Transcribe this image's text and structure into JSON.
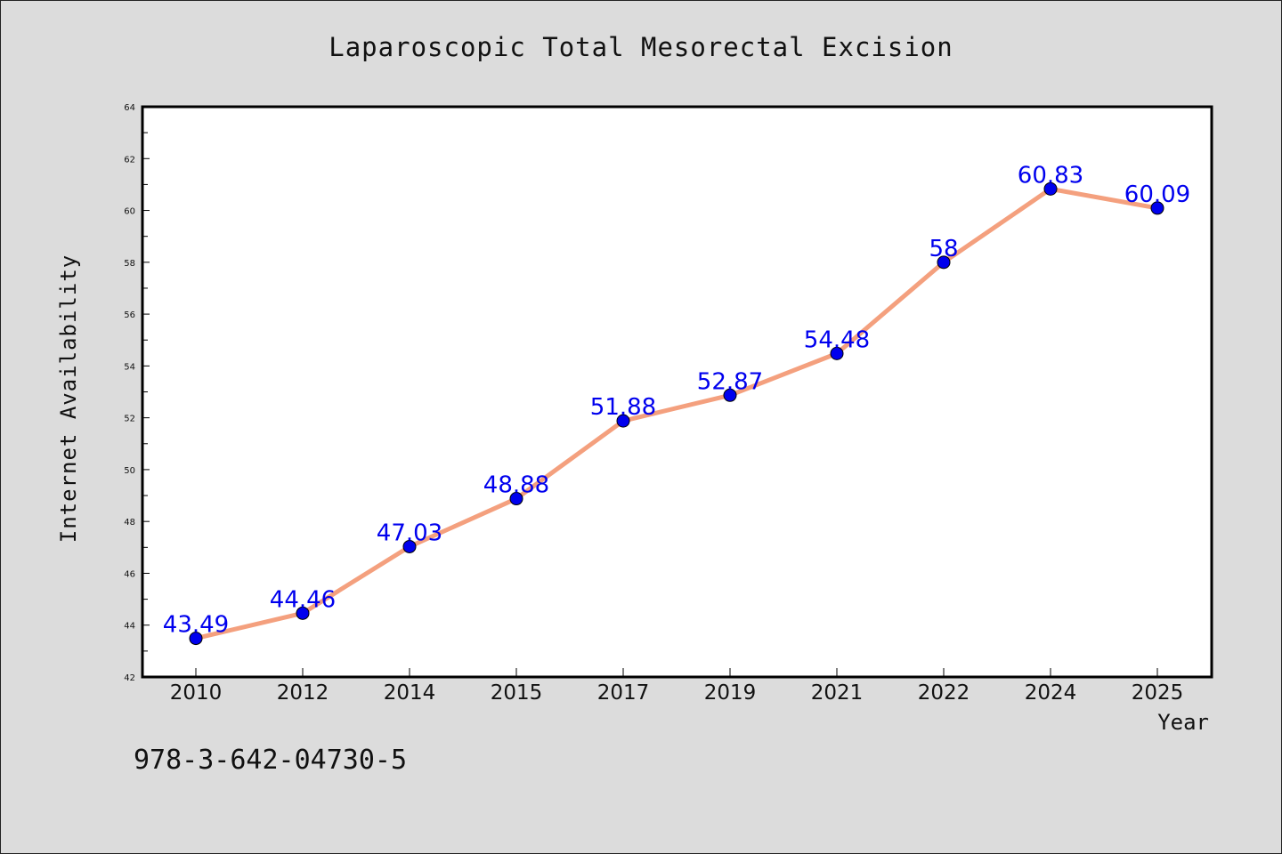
{
  "chart_data": {
    "type": "line",
    "title": "Laparoscopic Total Mesorectal Excision",
    "xlabel": "Year",
    "ylabel": "Internet Availability",
    "categories": [
      "2010",
      "2012",
      "2014",
      "2015",
      "2017",
      "2019",
      "2021",
      "2022",
      "2024",
      "2025"
    ],
    "values": [
      43.49,
      44.46,
      47.03,
      48.88,
      51.88,
      52.87,
      54.48,
      58,
      60.83,
      60.09
    ],
    "data_labels": [
      "43.49",
      "44.46",
      "47.03",
      "48.88",
      "51.88",
      "52.87",
      "54.48",
      "58",
      "60.83",
      "60.09"
    ],
    "ylim": [
      42,
      64
    ],
    "y_ticks": [
      "42",
      "44",
      "46",
      "48",
      "50",
      "52",
      "54",
      "56",
      "58",
      "60",
      "62",
      "64"
    ],
    "grid": false,
    "line_color": "#f4a07e",
    "marker_color": "#0000ee",
    "label_color": "#0000ee"
  },
  "footer_text": "978-3-642-04730-5"
}
